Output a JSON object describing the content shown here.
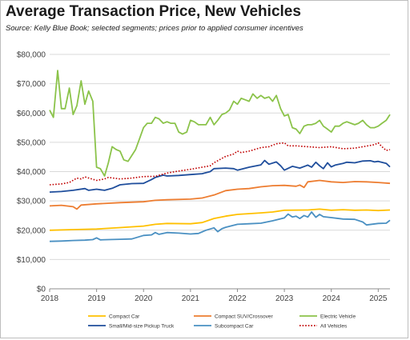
{
  "header": {
    "title": "Average Transaction Price, New Vehicles",
    "subtitle": "Source:  Kelly Blue Book; selected segments; prices prior to applied consumer incentives"
  },
  "chart_data": {
    "type": "line",
    "title": "Average Transaction Price, New Vehicles",
    "subtitle": "Source:  Kelly Blue Book; selected segments; prices prior to applied consumer incentives",
    "xlabel": "",
    "ylabel": "",
    "xlim": [
      2018,
      2025.25
    ],
    "ylim": [
      0,
      80000
    ],
    "x_ticks": [
      "2018",
      "2019",
      "2020",
      "2021",
      "2022",
      "2023",
      "2024",
      "2025"
    ],
    "y_ticks": [
      "$0",
      "$10,000",
      "$20,000",
      "$30,000",
      "$40,000",
      "$50,000",
      "$60,000",
      "$70,000",
      "$80,000"
    ],
    "grid": "horizontal",
    "legend_position": "bottom",
    "series": [
      {
        "name": "Compact Car",
        "color": "#ffc000",
        "dash": "solid",
        "points": [
          [
            2018,
            20000
          ],
          [
            2018.5,
            20200
          ],
          [
            2019,
            20400
          ],
          [
            2019.5,
            20900
          ],
          [
            2020,
            21400
          ],
          [
            2020.25,
            22000
          ],
          [
            2020.5,
            22300
          ],
          [
            2021,
            22200
          ],
          [
            2021.25,
            22600
          ],
          [
            2021.5,
            24000
          ],
          [
            2021.75,
            24800
          ],
          [
            2022,
            25400
          ],
          [
            2022.5,
            25900
          ],
          [
            2022.75,
            26200
          ],
          [
            2023,
            26800
          ],
          [
            2023.5,
            26900
          ],
          [
            2023.75,
            27200
          ],
          [
            2024,
            26800
          ],
          [
            2024.25,
            27000
          ],
          [
            2024.5,
            26800
          ],
          [
            2024.75,
            26900
          ],
          [
            2025,
            26700
          ],
          [
            2025.25,
            26900
          ]
        ]
      },
      {
        "name": "Compact SUV/Crossover",
        "color": "#ed7d31",
        "dash": "solid",
        "points": [
          [
            2018,
            28300
          ],
          [
            2018.25,
            28500
          ],
          [
            2018.5,
            28000
          ],
          [
            2018.58,
            27200
          ],
          [
            2018.67,
            28600
          ],
          [
            2019,
            29000
          ],
          [
            2019.5,
            29400
          ],
          [
            2020,
            29700
          ],
          [
            2020.25,
            30200
          ],
          [
            2020.5,
            30400
          ],
          [
            2021,
            30600
          ],
          [
            2021.25,
            31000
          ],
          [
            2021.5,
            32000
          ],
          [
            2021.75,
            33500
          ],
          [
            2022,
            34000
          ],
          [
            2022.25,
            34200
          ],
          [
            2022.5,
            34800
          ],
          [
            2022.75,
            35200
          ],
          [
            2023,
            35300
          ],
          [
            2023.25,
            35000
          ],
          [
            2023.33,
            35400
          ],
          [
            2023.42,
            34600
          ],
          [
            2023.5,
            36500
          ],
          [
            2023.75,
            37000
          ],
          [
            2024,
            36500
          ],
          [
            2024.25,
            36300
          ],
          [
            2024.5,
            36600
          ],
          [
            2024.75,
            36500
          ],
          [
            2025,
            36300
          ],
          [
            2025.25,
            36000
          ]
        ]
      },
      {
        "name": "Electric Vehicle",
        "color": "#8bc34a",
        "dash": "solid",
        "points": [
          [
            2018,
            61000
          ],
          [
            2018.08,
            58500
          ],
          [
            2018.17,
            74500
          ],
          [
            2018.25,
            61500
          ],
          [
            2018.33,
            61500
          ],
          [
            2018.42,
            68500
          ],
          [
            2018.5,
            59500
          ],
          [
            2018.58,
            62500
          ],
          [
            2018.67,
            71000
          ],
          [
            2018.75,
            63000
          ],
          [
            2018.83,
            67500
          ],
          [
            2018.92,
            64000
          ],
          [
            2019,
            41500
          ],
          [
            2019.08,
            41000
          ],
          [
            2019.17,
            38500
          ],
          [
            2019.25,
            43000
          ],
          [
            2019.33,
            48500
          ],
          [
            2019.42,
            47500
          ],
          [
            2019.5,
            47000
          ],
          [
            2019.58,
            44000
          ],
          [
            2019.67,
            43500
          ],
          [
            2019.75,
            45500
          ],
          [
            2019.83,
            47500
          ],
          [
            2019.92,
            51500
          ],
          [
            2020,
            55000
          ],
          [
            2020.08,
            56500
          ],
          [
            2020.17,
            56500
          ],
          [
            2020.25,
            58500
          ],
          [
            2020.33,
            58000
          ],
          [
            2020.42,
            56500
          ],
          [
            2020.5,
            57000
          ],
          [
            2020.58,
            56500
          ],
          [
            2020.67,
            56500
          ],
          [
            2020.75,
            53500
          ],
          [
            2020.83,
            52800
          ],
          [
            2020.92,
            53500
          ],
          [
            2021,
            57500
          ],
          [
            2021.08,
            57000
          ],
          [
            2021.17,
            56000
          ],
          [
            2021.25,
            56000
          ],
          [
            2021.33,
            56000
          ],
          [
            2021.42,
            58500
          ],
          [
            2021.5,
            56000
          ],
          [
            2021.58,
            57500
          ],
          [
            2021.67,
            59500
          ],
          [
            2021.75,
            60000
          ],
          [
            2021.83,
            61000
          ],
          [
            2021.92,
            64000
          ],
          [
            2022,
            63000
          ],
          [
            2022.08,
            65000
          ],
          [
            2022.17,
            64500
          ],
          [
            2022.25,
            64000
          ],
          [
            2022.33,
            66500
          ],
          [
            2022.42,
            65000
          ],
          [
            2022.5,
            66000
          ],
          [
            2022.58,
            65000
          ],
          [
            2022.67,
            65500
          ],
          [
            2022.75,
            64000
          ],
          [
            2022.83,
            66000
          ],
          [
            2022.92,
            61500
          ],
          [
            2023,
            59000
          ],
          [
            2023.08,
            59500
          ],
          [
            2023.17,
            55000
          ],
          [
            2023.25,
            54500
          ],
          [
            2023.33,
            53000
          ],
          [
            2023.42,
            55500
          ],
          [
            2023.5,
            56000
          ],
          [
            2023.58,
            56000
          ],
          [
            2023.67,
            56500
          ],
          [
            2023.75,
            57500
          ],
          [
            2023.83,
            55500
          ],
          [
            2023.92,
            54500
          ],
          [
            2024,
            53500
          ],
          [
            2024.08,
            55500
          ],
          [
            2024.17,
            55500
          ],
          [
            2024.25,
            56500
          ],
          [
            2024.33,
            57000
          ],
          [
            2024.42,
            56500
          ],
          [
            2024.5,
            56000
          ],
          [
            2024.58,
            56500
          ],
          [
            2024.67,
            57500
          ],
          [
            2024.75,
            56000
          ],
          [
            2024.83,
            55000
          ],
          [
            2024.92,
            55000
          ],
          [
            2025,
            55500
          ],
          [
            2025.08,
            56500
          ],
          [
            2025.17,
            57500
          ],
          [
            2025.25,
            59500
          ]
        ]
      },
      {
        "name": "Small/Mid-size Pickup Truck",
        "color": "#1f4e9c",
        "dash": "solid",
        "points": [
          [
            2018,
            33000
          ],
          [
            2018.25,
            33200
          ],
          [
            2018.5,
            33600
          ],
          [
            2018.75,
            34200
          ],
          [
            2018.83,
            33600
          ],
          [
            2019,
            34000
          ],
          [
            2019.17,
            33600
          ],
          [
            2019.33,
            34300
          ],
          [
            2019.5,
            35500
          ],
          [
            2019.75,
            35900
          ],
          [
            2020,
            36000
          ],
          [
            2020.17,
            37300
          ],
          [
            2020.25,
            38000
          ],
          [
            2020.42,
            38800
          ],
          [
            2020.5,
            38500
          ],
          [
            2020.75,
            38700
          ],
          [
            2021,
            39000
          ],
          [
            2021.25,
            39300
          ],
          [
            2021.42,
            40000
          ],
          [
            2021.5,
            41000
          ],
          [
            2021.75,
            41200
          ],
          [
            2021.92,
            41000
          ],
          [
            2022,
            40500
          ],
          [
            2022.25,
            41500
          ],
          [
            2022.5,
            42300
          ],
          [
            2022.58,
            43800
          ],
          [
            2022.67,
            42500
          ],
          [
            2022.83,
            43300
          ],
          [
            2022.92,
            42000
          ],
          [
            2023,
            40500
          ],
          [
            2023.17,
            41800
          ],
          [
            2023.33,
            41200
          ],
          [
            2023.5,
            42200
          ],
          [
            2023.58,
            41500
          ],
          [
            2023.67,
            43200
          ],
          [
            2023.75,
            42000
          ],
          [
            2023.83,
            41000
          ],
          [
            2023.92,
            43000
          ],
          [
            2024,
            41600
          ],
          [
            2024.08,
            42200
          ],
          [
            2024.25,
            42800
          ],
          [
            2024.33,
            43200
          ],
          [
            2024.5,
            43000
          ],
          [
            2024.67,
            43600
          ],
          [
            2024.83,
            43700
          ],
          [
            2024.92,
            43300
          ],
          [
            2025,
            43500
          ],
          [
            2025.17,
            42800
          ],
          [
            2025.25,
            41600
          ]
        ]
      },
      {
        "name": "Subcompact Car",
        "color": "#4a90c2",
        "dash": "solid",
        "points": [
          [
            2018,
            16200
          ],
          [
            2018.25,
            16300
          ],
          [
            2018.5,
            16500
          ],
          [
            2018.75,
            16600
          ],
          [
            2018.92,
            16800
          ],
          [
            2019,
            17400
          ],
          [
            2019.08,
            16700
          ],
          [
            2019.25,
            16800
          ],
          [
            2019.5,
            16900
          ],
          [
            2019.75,
            17000
          ],
          [
            2020,
            18200
          ],
          [
            2020.17,
            18400
          ],
          [
            2020.25,
            19200
          ],
          [
            2020.33,
            18600
          ],
          [
            2020.5,
            19200
          ],
          [
            2020.75,
            19000
          ],
          [
            2021,
            18700
          ],
          [
            2021.17,
            18900
          ],
          [
            2021.33,
            20000
          ],
          [
            2021.5,
            20800
          ],
          [
            2021.58,
            19500
          ],
          [
            2021.67,
            20500
          ],
          [
            2021.75,
            21000
          ],
          [
            2022,
            22000
          ],
          [
            2022.25,
            22200
          ],
          [
            2022.5,
            22400
          ],
          [
            2022.75,
            23200
          ],
          [
            2023,
            24200
          ],
          [
            2023.08,
            25500
          ],
          [
            2023.17,
            24500
          ],
          [
            2023.25,
            24800
          ],
          [
            2023.33,
            24000
          ],
          [
            2023.42,
            25000
          ],
          [
            2023.5,
            24500
          ],
          [
            2023.58,
            26200
          ],
          [
            2023.67,
            24400
          ],
          [
            2023.75,
            25400
          ],
          [
            2023.83,
            24600
          ],
          [
            2024,
            24300
          ],
          [
            2024.25,
            23800
          ],
          [
            2024.5,
            23700
          ],
          [
            2024.67,
            22800
          ],
          [
            2024.75,
            21800
          ],
          [
            2025,
            22300
          ],
          [
            2025.17,
            22400
          ],
          [
            2025.25,
            23400
          ]
        ]
      },
      {
        "name": "All Vehicles",
        "color": "#c00000",
        "dash": "dotted",
        "points": [
          [
            2018,
            35500
          ],
          [
            2018.25,
            35800
          ],
          [
            2018.42,
            36300
          ],
          [
            2018.58,
            37800
          ],
          [
            2018.67,
            37500
          ],
          [
            2018.75,
            38200
          ],
          [
            2019,
            37000
          ],
          [
            2019.17,
            37500
          ],
          [
            2019.25,
            38000
          ],
          [
            2019.5,
            37500
          ],
          [
            2019.75,
            37800
          ],
          [
            2020,
            38300
          ],
          [
            2020.25,
            38400
          ],
          [
            2020.5,
            39500
          ],
          [
            2020.75,
            40200
          ],
          [
            2021,
            40800
          ],
          [
            2021.25,
            41500
          ],
          [
            2021.42,
            42000
          ],
          [
            2021.5,
            43000
          ],
          [
            2021.67,
            44500
          ],
          [
            2021.75,
            45200
          ],
          [
            2021.92,
            46000
          ],
          [
            2022,
            47000
          ],
          [
            2022.08,
            46500
          ],
          [
            2022.25,
            47000
          ],
          [
            2022.5,
            48200
          ],
          [
            2022.67,
            48500
          ],
          [
            2022.83,
            49500
          ],
          [
            2023,
            49800
          ],
          [
            2023.08,
            48800
          ],
          [
            2023.25,
            48800
          ],
          [
            2023.5,
            48500
          ],
          [
            2023.75,
            48200
          ],
          [
            2024,
            48500
          ],
          [
            2024.25,
            47800
          ],
          [
            2024.5,
            48000
          ],
          [
            2024.75,
            48700
          ],
          [
            2024.92,
            49200
          ],
          [
            2025,
            49800
          ],
          [
            2025.08,
            48500
          ],
          [
            2025.17,
            47200
          ],
          [
            2025.25,
            47500
          ]
        ]
      }
    ]
  }
}
